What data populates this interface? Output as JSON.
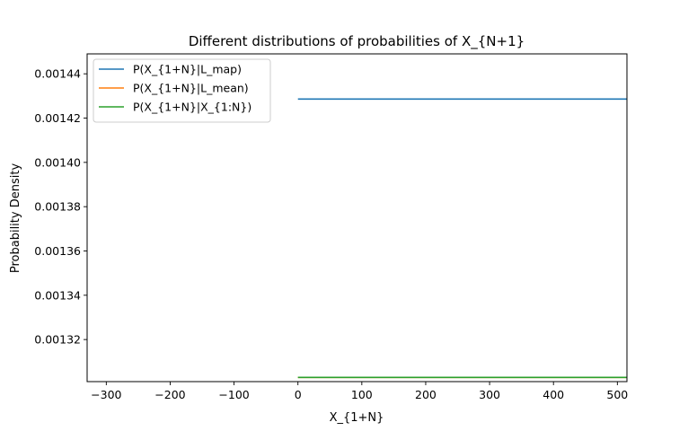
{
  "chart_data": {
    "type": "line",
    "title": "Different distributions of probabilities of X_{N+1}",
    "xlabel": "X_{1+N}",
    "ylabel": "Probability Density",
    "xlim": [
      -330,
      515
    ],
    "ylim": [
      0.001301,
      0.001449
    ],
    "xticks": [
      -300,
      -200,
      -100,
      0,
      100,
      200,
      300,
      400,
      500
    ],
    "xtick_labels": [
      "−300",
      "−200",
      "−100",
      "0",
      "100",
      "200",
      "300",
      "400",
      "500"
    ],
    "yticks": [
      0.00132,
      0.00134,
      0.00136,
      0.00138,
      0.0014,
      0.00142,
      0.00144
    ],
    "ytick_labels": [
      "0.00132",
      "0.00134",
      "0.00136",
      "0.00138",
      "0.00140",
      "0.00142",
      "0.00144"
    ],
    "grid": false,
    "legend_position": "top-left",
    "series": [
      {
        "name": "P(X_{1+N}|L_map)",
        "color": "#1f77b4",
        "x": [
          0,
          515
        ],
        "y": [
          0.0014286,
          0.0014286
        ]
      },
      {
        "name": "P(X_{1+N}|L_mean)",
        "color": "#ff7f0e",
        "x": [
          0,
          515
        ],
        "y": [
          0.0013029,
          0.0013029
        ]
      },
      {
        "name": "P(X_{1+N}|X_{1:N})",
        "color": "#2ca02c",
        "x": [
          0,
          515
        ],
        "y": [
          0.0013029,
          0.0013029
        ]
      }
    ]
  }
}
